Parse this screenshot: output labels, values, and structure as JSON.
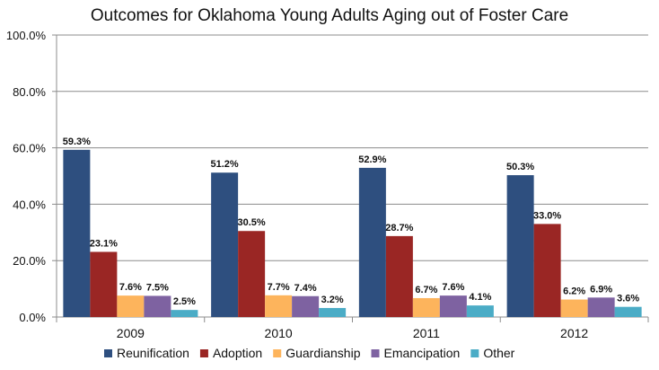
{
  "chart_data": {
    "type": "bar",
    "title": "Outcomes for Oklahoma Young Adults Aging out of Foster Care",
    "xlabel": "",
    "ylabel": "",
    "ylim": [
      0,
      100
    ],
    "yticks": [
      "0.0%",
      "20.0%",
      "40.0%",
      "60.0%",
      "80.0%",
      "100.0%"
    ],
    "grid": true,
    "legend_position": "bottom",
    "categories": [
      "2009",
      "2010",
      "2011",
      "2012"
    ],
    "series": [
      {
        "name": "Reunification",
        "color": "#2E4F7F",
        "values": [
          59.3,
          51.2,
          52.9,
          50.3
        ],
        "labels": [
          "59.3%",
          "51.2%",
          "52.9%",
          "50.3%"
        ]
      },
      {
        "name": "Adoption",
        "color": "#9A2624",
        "values": [
          23.1,
          30.5,
          28.7,
          33.0
        ],
        "labels": [
          "23.1%",
          "30.5%",
          "28.7%",
          "33.0%"
        ]
      },
      {
        "name": "Guardianship",
        "color": "#FDB45C",
        "values": [
          7.6,
          7.7,
          6.7,
          6.2
        ],
        "labels": [
          "7.6%",
          "7.7%",
          "6.7%",
          "6.2%"
        ]
      },
      {
        "name": "Emancipation",
        "color": "#7E62A1",
        "values": [
          7.5,
          7.4,
          7.6,
          6.9
        ],
        "labels": [
          "7.5%",
          "7.4%",
          "7.6%",
          "6.9%"
        ]
      },
      {
        "name": "Other",
        "color": "#4BACC6",
        "values": [
          2.5,
          3.2,
          4.1,
          3.6
        ],
        "labels": [
          "2.5%",
          "3.2%",
          "4.1%",
          "3.6%"
        ]
      }
    ]
  }
}
